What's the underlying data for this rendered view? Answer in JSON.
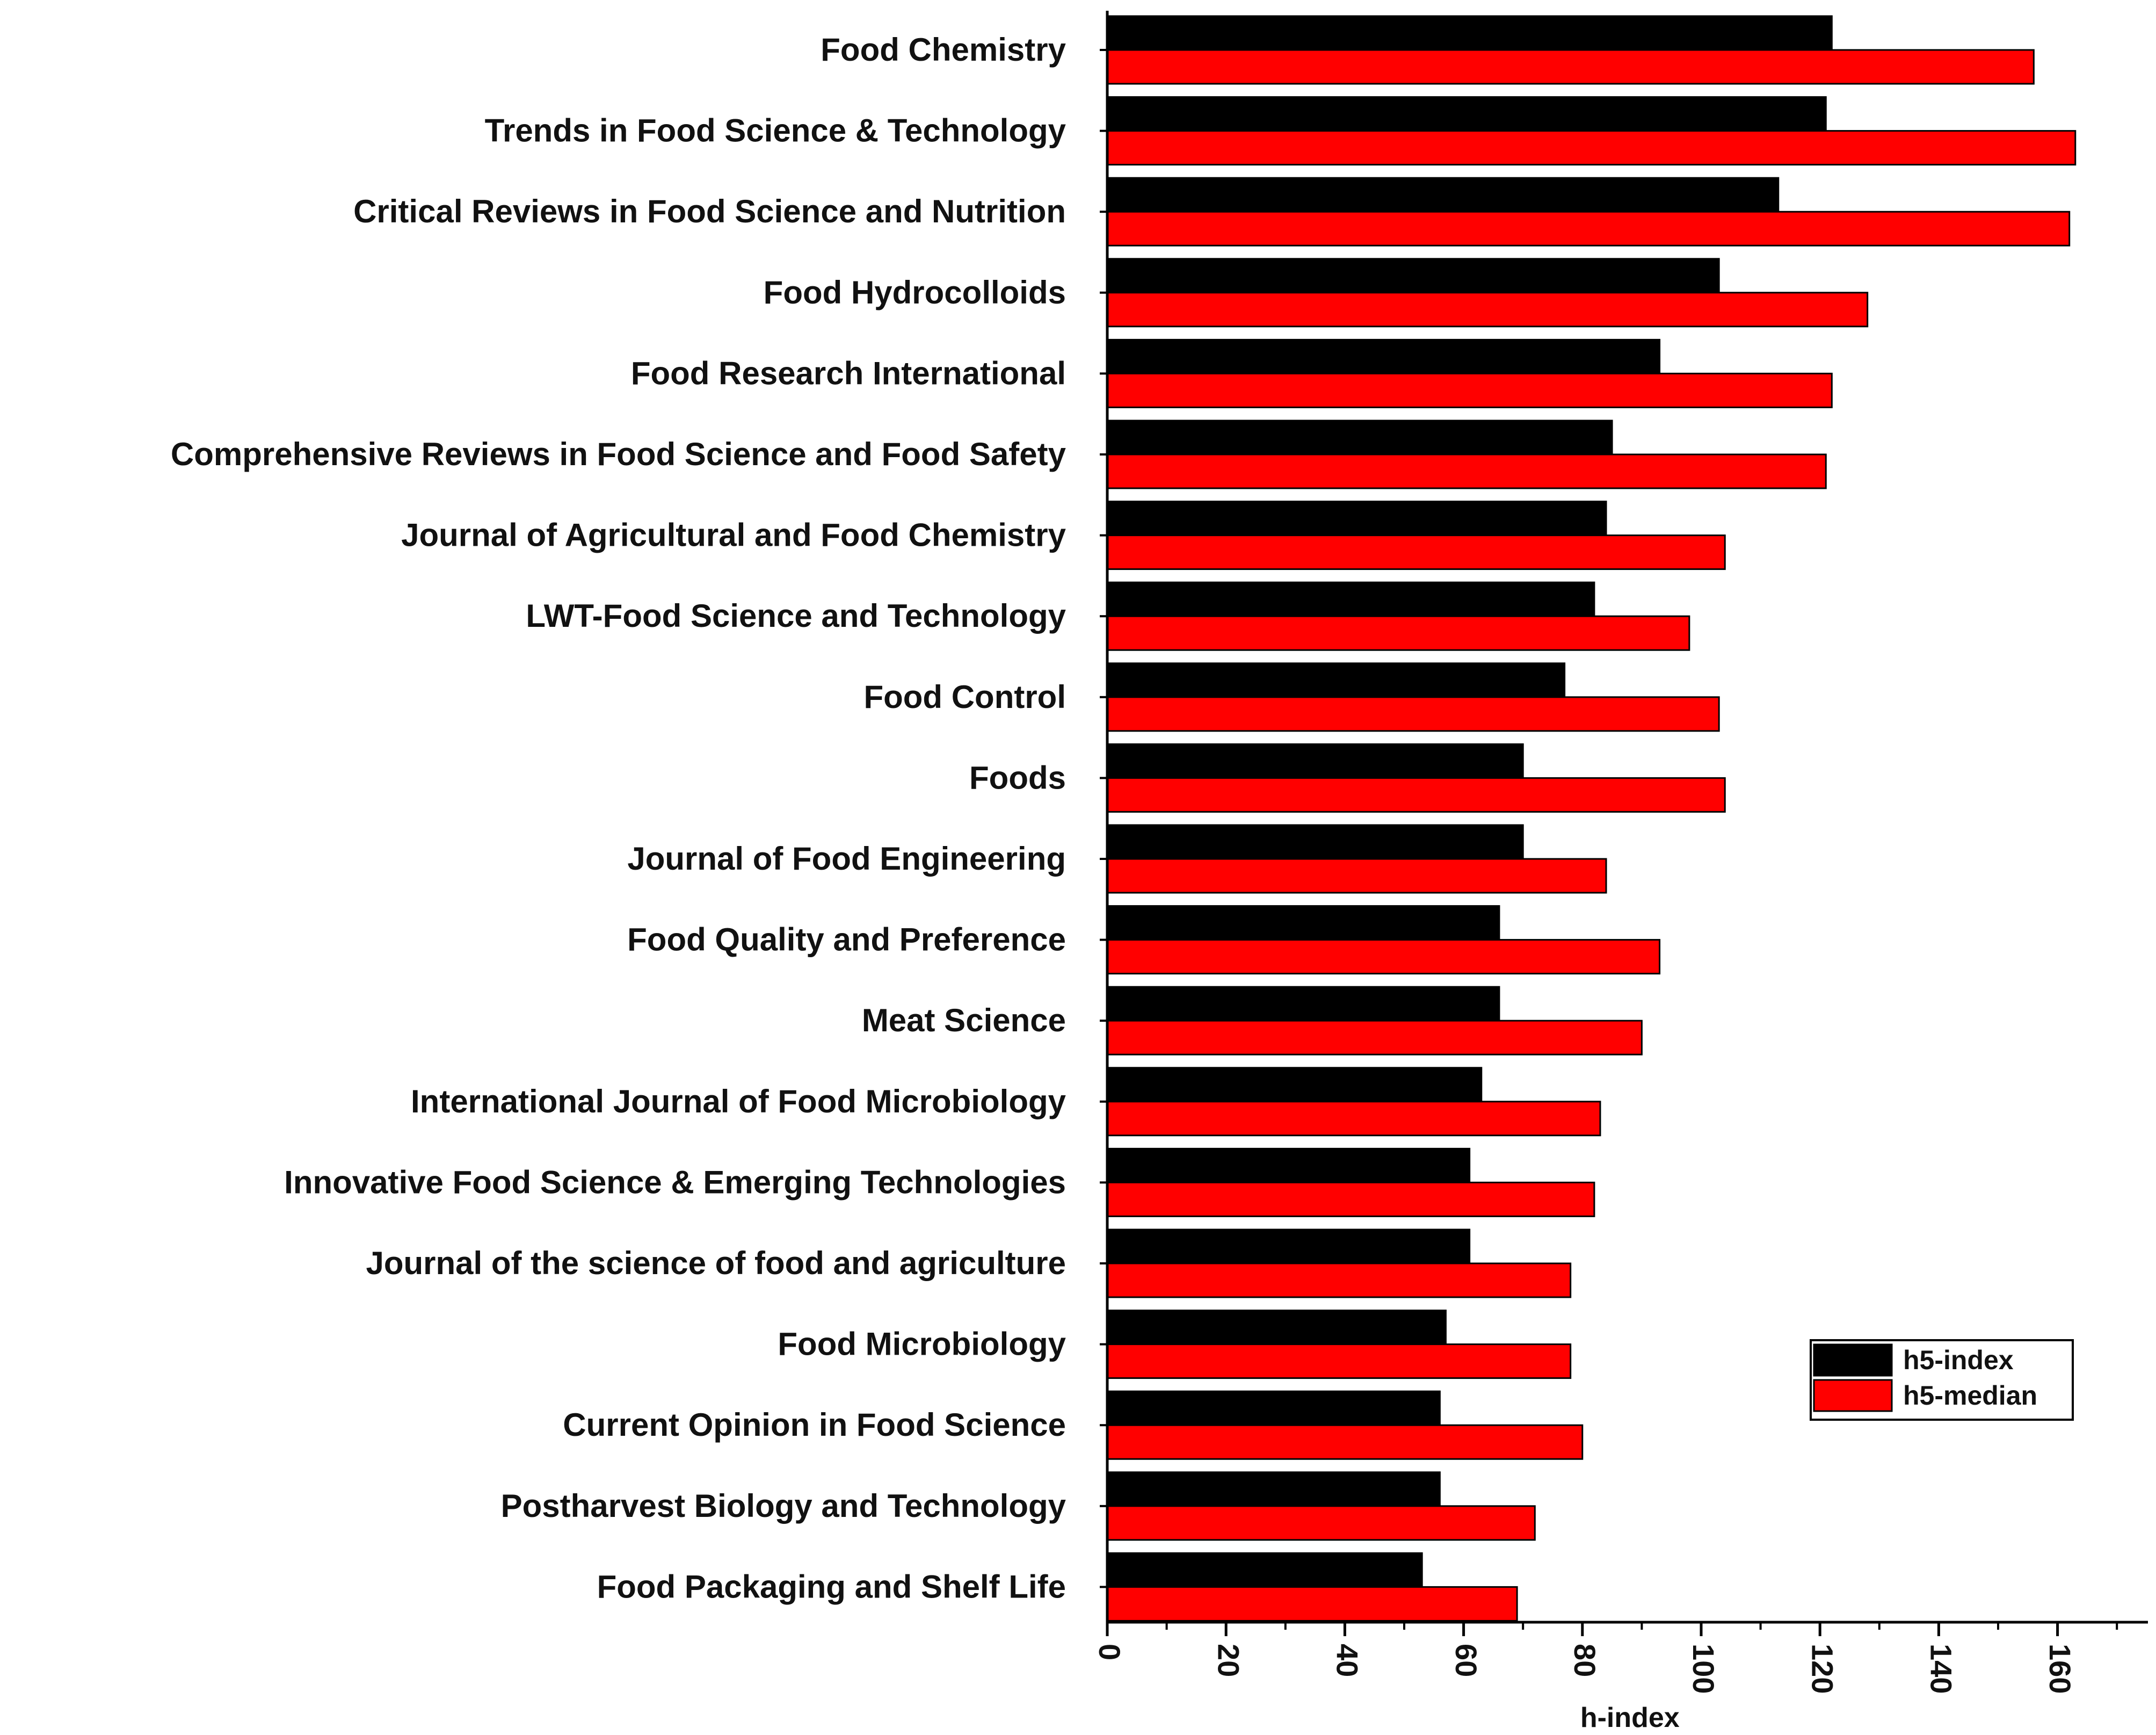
{
  "chart_data": {
    "type": "bar",
    "orientation": "horizontal",
    "categories": [
      "Food Chemistry",
      "Trends in Food Science & Technology",
      "Critical Reviews in Food Science and Nutrition",
      "Food Hydrocolloids",
      "Food Research International",
      "Comprehensive Reviews in Food Science and Food Safety",
      "Journal of Agricultural and Food Chemistry",
      "LWT-Food Science and Technology",
      "Food Control",
      "Foods",
      "Journal of Food Engineering",
      "Food Quality and Preference",
      "Meat Science",
      "International Journal of Food Microbiology",
      "Innovative Food Science & Emerging Technologies",
      "Journal of the science of food and agriculture",
      "Food Microbiology",
      "Current Opinion in Food Science",
      "Postharvest Biology and Technology",
      "Food Packaging and Shelf Life"
    ],
    "series": [
      {
        "name": "h5-index",
        "color": "#000000",
        "values": [
          122,
          121,
          113,
          103,
          93,
          85,
          84,
          82,
          77,
          70,
          70,
          66,
          66,
          63,
          61,
          61,
          57,
          56,
          56,
          53
        ]
      },
      {
        "name": "h5-median",
        "color": "#ff0000",
        "values": [
          156,
          163,
          162,
          128,
          122,
          121,
          104,
          98,
          103,
          104,
          84,
          93,
          90,
          83,
          82,
          78,
          78,
          80,
          72,
          69
        ]
      }
    ],
    "xlabel": "h-index",
    "ylabel": "",
    "xlim": [
      0,
      175
    ],
    "xticks": [
      0,
      20,
      40,
      60,
      80,
      100,
      120,
      140,
      160
    ],
    "grid": false,
    "legend_position": "bottom-right"
  }
}
